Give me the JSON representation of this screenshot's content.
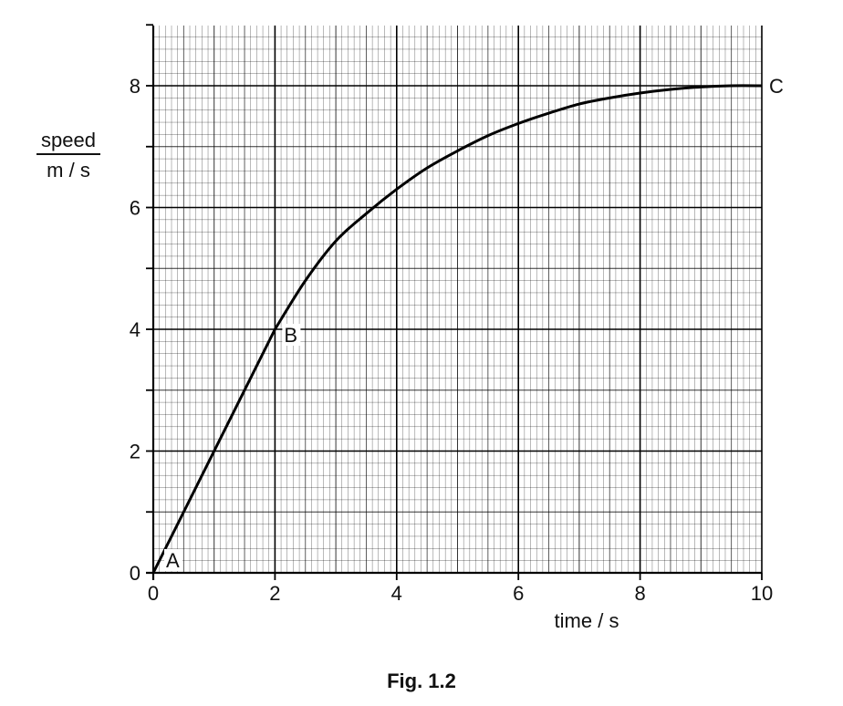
{
  "chart_data": {
    "type": "line",
    "title": "",
    "xlabel": "time / s",
    "ylabel_numerator": "speed",
    "ylabel_denominator": "m / s",
    "xlim": [
      0,
      10
    ],
    "ylim": [
      0,
      9
    ],
    "x_ticks": [
      "0",
      "2",
      "4",
      "6",
      "8",
      "10"
    ],
    "y_ticks": [
      "0",
      "2",
      "4",
      "6",
      "8"
    ],
    "grid": true,
    "series": [
      {
        "x": [
          0,
          1,
          2,
          2.5,
          3,
          3.5,
          4,
          4.5,
          5,
          5.5,
          6,
          6.5,
          7,
          7.5,
          8,
          8.5,
          9,
          9.5,
          10
        ],
        "y": [
          0,
          2,
          4,
          4.8,
          5.45,
          5.9,
          6.3,
          6.65,
          6.93,
          7.18,
          7.38,
          7.55,
          7.7,
          7.8,
          7.88,
          7.94,
          7.98,
          8.0,
          8.0
        ]
      }
    ],
    "annotations": [
      {
        "text": "A",
        "x": 0,
        "y": 0
      },
      {
        "text": "B",
        "x": 2,
        "y": 4
      },
      {
        "text": "C",
        "x": 10,
        "y": 8
      }
    ]
  },
  "caption": "Fig. 1.2",
  "colors": {
    "grid": "#000000",
    "curve": "#000000",
    "background": "#ffffff"
  }
}
